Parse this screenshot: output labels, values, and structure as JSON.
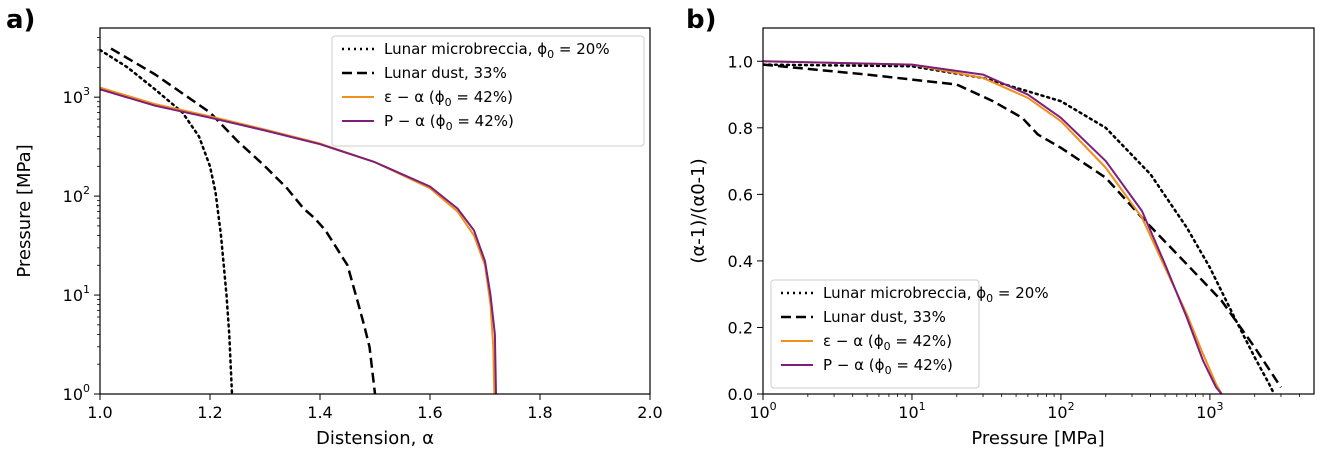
{
  "panels": [
    {
      "label": "a)",
      "chart_data": {
        "type": "line",
        "xlabel": "Distension, α",
        "ylabel": "Pressure [MPa]",
        "xscale": "linear",
        "yscale": "log",
        "xlim": [
          1.0,
          2.0
        ],
        "ylim": [
          1,
          5000
        ],
        "x_ticks": [
          "1.0",
          "1.2",
          "1.4",
          "1.6",
          "1.8",
          "2.0"
        ],
        "y_ticks": [
          "10^0",
          "10^1",
          "10^2",
          "10^3"
        ],
        "legend_position": "top-right",
        "series": [
          {
            "name": "Lunar microbreccia, ϕ0 = 20%",
            "style": "dotted",
            "color": "#000000",
            "points": [
              [
                1.0,
                3000
              ],
              [
                1.05,
                2000
              ],
              [
                1.1,
                1200
              ],
              [
                1.15,
                700
              ],
              [
                1.18,
                400
              ],
              [
                1.2,
                200
              ],
              [
                1.21,
                110
              ],
              [
                1.22,
                40
              ],
              [
                1.23,
                10
              ],
              [
                1.235,
                4
              ],
              [
                1.24,
                1
              ]
            ]
          },
          {
            "name": "Lunar dust, 33%",
            "style": "dashed",
            "color": "#000000",
            "points": [
              [
                1.02,
                3100
              ],
              [
                1.1,
                1700
              ],
              [
                1.2,
                700
              ],
              [
                1.25,
                360
              ],
              [
                1.3,
                200
              ],
              [
                1.34,
                120
              ],
              [
                1.37,
                75
              ],
              [
                1.39,
                60
              ],
              [
                1.41,
                45
              ],
              [
                1.43,
                30
              ],
              [
                1.45,
                20
              ],
              [
                1.47,
                8
              ],
              [
                1.48,
                5
              ],
              [
                1.49,
                3
              ],
              [
                1.5,
                1
              ]
            ]
          },
          {
            "name": "ε − α (ϕ0 = 42%)",
            "style": "solid",
            "color": "#f28e1c",
            "points": [
              [
                1.0,
                1250
              ],
              [
                1.1,
                850
              ],
              [
                1.2,
                640
              ],
              [
                1.3,
                470
              ],
              [
                1.4,
                340
              ],
              [
                1.5,
                220
              ],
              [
                1.6,
                120
              ],
              [
                1.65,
                70
              ],
              [
                1.68,
                40
              ],
              [
                1.7,
                20
              ],
              [
                1.71,
                8
              ],
              [
                1.715,
                3
              ],
              [
                1.717,
                1
              ]
            ]
          },
          {
            "name": "P − α (ϕ0 = 42%)",
            "style": "solid",
            "color": "#7b1f7b",
            "points": [
              [
                1.0,
                1200
              ],
              [
                1.1,
                820
              ],
              [
                1.2,
                620
              ],
              [
                1.3,
                460
              ],
              [
                1.4,
                335
              ],
              [
                1.5,
                220
              ],
              [
                1.6,
                125
              ],
              [
                1.65,
                75
              ],
              [
                1.68,
                45
              ],
              [
                1.7,
                22
              ],
              [
                1.71,
                10
              ],
              [
                1.718,
                4
              ],
              [
                1.72,
                1
              ]
            ]
          }
        ]
      }
    },
    {
      "label": "b)",
      "chart_data": {
        "type": "line",
        "xlabel": "Pressure [MPa]",
        "ylabel": "(α-1)/(α0-1)",
        "xscale": "log",
        "yscale": "linear",
        "xlim": [
          1,
          5000
        ],
        "ylim": [
          0,
          1.1
        ],
        "x_ticks": [
          "10^0",
          "10^1",
          "10^2",
          "10^3"
        ],
        "y_ticks": [
          "0.0",
          "0.2",
          "0.4",
          "0.6",
          "0.8",
          "1.0"
        ],
        "legend_position": "bottom-left",
        "series": [
          {
            "name": "Lunar microbreccia, ϕ0 = 20%",
            "style": "dotted",
            "color": "#000000",
            "points": [
              [
                1,
                0.99
              ],
              [
                10,
                0.985
              ],
              [
                30,
                0.95
              ],
              [
                100,
                0.88
              ],
              [
                200,
                0.8
              ],
              [
                400,
                0.66
              ],
              [
                700,
                0.5
              ],
              [
                1000,
                0.38
              ],
              [
                1500,
                0.22
              ],
              [
                2000,
                0.11
              ],
              [
                2500,
                0.03
              ],
              [
                2700,
                0.0
              ]
            ]
          },
          {
            "name": "Lunar dust, 33%",
            "style": "dashed",
            "color": "#000000",
            "points": [
              [
                1,
                0.99
              ],
              [
                5,
                0.96
              ],
              [
                20,
                0.93
              ],
              [
                35,
                0.88
              ],
              [
                55,
                0.83
              ],
              [
                70,
                0.78
              ],
              [
                100,
                0.74
              ],
              [
                200,
                0.65
              ],
              [
                350,
                0.53
              ],
              [
                700,
                0.39
              ],
              [
                1200,
                0.28
              ],
              [
                2000,
                0.14
              ],
              [
                3000,
                0.02
              ]
            ]
          },
          {
            "name": "ε − α (ϕ0 = 42%)",
            "style": "solid",
            "color": "#f28e1c",
            "points": [
              [
                1,
                1.0
              ],
              [
                10,
                0.99
              ],
              [
                30,
                0.95
              ],
              [
                60,
                0.89
              ],
              [
                100,
                0.82
              ],
              [
                200,
                0.68
              ],
              [
                350,
                0.53
              ],
              [
                500,
                0.38
              ],
              [
                700,
                0.24
              ],
              [
                900,
                0.12
              ],
              [
                1100,
                0.03
              ],
              [
                1200,
                0.0
              ]
            ]
          },
          {
            "name": "P − α (ϕ0 = 42%)",
            "style": "solid",
            "color": "#7b1f7b",
            "points": [
              [
                1,
                1.0
              ],
              [
                10,
                0.99
              ],
              [
                30,
                0.96
              ],
              [
                60,
                0.9
              ],
              [
                100,
                0.83
              ],
              [
                200,
                0.7
              ],
              [
                350,
                0.55
              ],
              [
                500,
                0.39
              ],
              [
                700,
                0.23
              ],
              [
                900,
                0.1
              ],
              [
                1100,
                0.02
              ],
              [
                1200,
                0.0
              ]
            ]
          }
        ]
      }
    }
  ]
}
